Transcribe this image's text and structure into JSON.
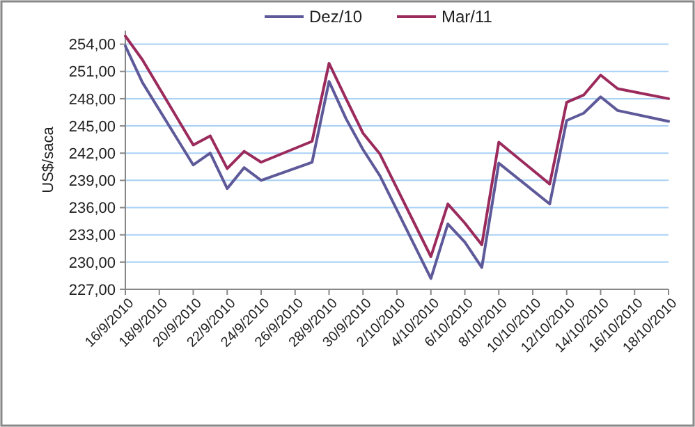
{
  "chart_data": {
    "type": "line",
    "ylabel": "US$/saca",
    "x": [
      "2010-09-16",
      "2010-09-17",
      "2010-09-20",
      "2010-09-21",
      "2010-09-22",
      "2010-09-23",
      "2010-09-24",
      "2010-09-27",
      "2010-09-28",
      "2010-09-29",
      "2010-09-30",
      "2010-10-01",
      "2010-10-04",
      "2010-10-05",
      "2010-10-06",
      "2010-10-07",
      "2010-10-08",
      "2010-10-11",
      "2010-10-12",
      "2010-10-13",
      "2010-10-14",
      "2010-10-15",
      "2010-10-18"
    ],
    "series": [
      {
        "name": "Dez/10",
        "color": "#5e5a9a",
        "values": [
          253.8,
          249.8,
          240.7,
          242.0,
          238.1,
          240.4,
          239.0,
          241.0,
          249.9,
          245.8,
          242.4,
          239.5,
          228.2,
          234.2,
          232.2,
          229.4,
          240.9,
          236.4,
          245.6,
          246.4,
          248.2,
          246.7,
          245.5
        ]
      },
      {
        "name": "Mar/11",
        "color": "#9b2b5c",
        "values": [
          254.9,
          252.3,
          242.9,
          243.9,
          240.3,
          242.2,
          241.0,
          243.3,
          251.9,
          248.0,
          244.2,
          241.9,
          230.6,
          236.4,
          234.3,
          231.9,
          243.2,
          238.6,
          247.6,
          248.4,
          250.6,
          249.1,
          248.0
        ]
      }
    ],
    "xlim": [
      "2010-09-16",
      "2010-10-18"
    ],
    "xticks": [
      {
        "value": "2010-09-16",
        "label": "16/9/2010"
      },
      {
        "value": "2010-09-18",
        "label": "18/9/2010"
      },
      {
        "value": "2010-09-20",
        "label": "20/9/2010"
      },
      {
        "value": "2010-09-22",
        "label": "22/9/2010"
      },
      {
        "value": "2010-09-24",
        "label": "24/9/2010"
      },
      {
        "value": "2010-09-26",
        "label": "26/9/2010"
      },
      {
        "value": "2010-09-28",
        "label": "28/9/2010"
      },
      {
        "value": "2010-09-30",
        "label": "30/9/2010"
      },
      {
        "value": "2010-10-02",
        "label": "2/10/2010"
      },
      {
        "value": "2010-10-04",
        "label": "4/10/2010"
      },
      {
        "value": "2010-10-06",
        "label": "6/10/2010"
      },
      {
        "value": "2010-10-08",
        "label": "8/10/2010"
      },
      {
        "value": "2010-10-10",
        "label": "10/10/2010"
      },
      {
        "value": "2010-10-12",
        "label": "12/10/2010"
      },
      {
        "value": "2010-10-14",
        "label": "14/10/2010"
      },
      {
        "value": "2010-10-16",
        "label": "16/10/2010"
      },
      {
        "value": "2010-10-18",
        "label": "18/10/2010"
      }
    ],
    "ylim": [
      227,
      255.5
    ],
    "yticks": [
      {
        "value": 227,
        "label": "227,00"
      },
      {
        "value": 230,
        "label": "230,00"
      },
      {
        "value": 233,
        "label": "233,00"
      },
      {
        "value": 236,
        "label": "236,00"
      },
      {
        "value": 239,
        "label": "239,00"
      },
      {
        "value": 242,
        "label": "242,00"
      },
      {
        "value": 245,
        "label": "245,00"
      },
      {
        "value": 248,
        "label": "248,00"
      },
      {
        "value": 251,
        "label": "251,00"
      },
      {
        "value": 254,
        "label": "254,00"
      }
    ],
    "grid": "y",
    "legend": "top",
    "marker": "none",
    "line_style": "solid"
  }
}
